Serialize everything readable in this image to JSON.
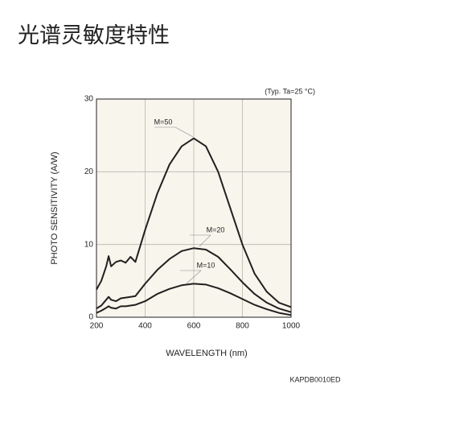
{
  "page_title": "光谱灵敏度特性",
  "chart_data": {
    "type": "line",
    "annotation": "(Typ. Ta=25 °C)",
    "code": "KAPDB0010ED",
    "x_label": "WAVELENGTH (nm)",
    "y_label": "PHOTO SENSITIVITY (A/W)",
    "x": [
      200,
      220,
      240,
      250,
      260,
      280,
      300,
      320,
      340,
      360,
      400,
      450,
      500,
      550,
      600,
      650,
      700,
      750,
      800,
      850,
      900,
      950,
      1000
    ],
    "series": [
      {
        "name": "M=50",
        "color": "#231f20",
        "values": [
          3.8,
          5,
          7,
          8.4,
          7,
          7.6,
          7.8,
          7.5,
          8.3,
          7.6,
          12,
          17,
          21,
          23.5,
          24.6,
          23.5,
          20,
          15,
          10,
          6,
          3.5,
          2,
          1.4
        ]
      },
      {
        "name": "M=20",
        "color": "#231f20",
        "values": [
          1.2,
          1.6,
          2.4,
          2.8,
          2.4,
          2.2,
          2.6,
          2.7,
          2.8,
          2.9,
          4.6,
          6.5,
          8,
          9.1,
          9.5,
          9.3,
          8.3,
          6.6,
          4.8,
          3.2,
          2,
          1.2,
          0.7
        ]
      },
      {
        "name": "M=10",
        "color": "#231f20",
        "values": [
          0.6,
          0.9,
          1.3,
          1.5,
          1.3,
          1.2,
          1.5,
          1.5,
          1.6,
          1.7,
          2.2,
          3.2,
          3.9,
          4.4,
          4.6,
          4.5,
          4,
          3.3,
          2.5,
          1.7,
          1.1,
          0.6,
          0.3
        ]
      }
    ],
    "xlim": [
      200,
      1000
    ],
    "xticks": [
      200,
      400,
      600,
      800,
      1000
    ],
    "ylim": [
      0,
      30
    ],
    "yticks": [
      0,
      10,
      20,
      30
    ],
    "grid": true
  }
}
